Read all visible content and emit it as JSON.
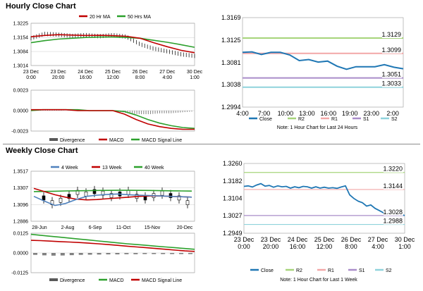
{
  "sections": {
    "hourly_title": "Hourly Close Chart",
    "weekly_title": "Weekly Close Chart"
  },
  "colors": {
    "close": "#1f77b4",
    "ma20": "#c00000",
    "ma50": "#2ca02c",
    "r2": "#a6d47a",
    "r1": "#f2a7a7",
    "s1": "#a98cc9",
    "s2": "#8fd3dc",
    "price_bar": "#000000",
    "divergence": "#808080",
    "week4": "#4f81bd"
  },
  "chart_data": [
    {
      "id": "hourly_price_ma",
      "type": "line",
      "legend": [
        "20 Hr MA",
        "50 Hrs MA"
      ],
      "y_ticks": [
        "1.3225",
        "1.3154",
        "1.3084",
        "1.3014"
      ],
      "ylim": [
        1.3014,
        1.3225
      ],
      "x_ticks": [
        {
          "label1": "23 Dec",
          "label2": "0:00"
        },
        {
          "label1": "23 Dec",
          "label2": "20:00"
        },
        {
          "label1": "24 Dec",
          "label2": "16:00"
        },
        {
          "label1": "25 Dec",
          "label2": "12:00"
        },
        {
          "label1": "26 Dec",
          "label2": "8:00"
        },
        {
          "label1": "27 Dec",
          "label2": "4:00"
        },
        {
          "label1": "30 Dec",
          "label2": "1:00"
        }
      ],
      "series": [
        {
          "name": "20 Hr MA",
          "values": [
            1.3158,
            1.3164,
            1.3168,
            1.3166,
            1.3164,
            1.3165,
            1.3163,
            1.316,
            1.315,
            1.3128,
            1.3108,
            1.309,
            1.3078
          ]
        },
        {
          "name": "50 Hrs MA",
          "values": [
            1.3128,
            1.3138,
            1.3146,
            1.315,
            1.3154,
            1.3156,
            1.3156,
            1.3154,
            1.315,
            1.314,
            1.313,
            1.3118,
            1.3105
          ]
        },
        {
          "name": "Close",
          "values": [
            1.315,
            1.3172,
            1.3168,
            1.3162,
            1.3166,
            1.316,
            1.3166,
            1.3158,
            1.312,
            1.3098,
            1.3085,
            1.307,
            1.3062
          ]
        }
      ]
    },
    {
      "id": "hourly_macd",
      "type": "line",
      "y_ticks": [
        "0.0023",
        "0.0000",
        "-0.0023"
      ],
      "ylim": [
        -0.0023,
        0.0023
      ],
      "legend": [
        "Divergence",
        "MACD",
        "MACD Signal Line"
      ],
      "series": [
        {
          "name": "Divergence",
          "values": [
            0.0001,
            0.0001,
            0.0001,
            0.0,
            0.0001,
            0.0,
            0.0,
            0.0,
            -0.0001,
            -0.0003,
            -0.0004,
            -0.0004,
            -0.0003,
            -0.0003,
            -0.0002,
            -0.0001
          ]
        },
        {
          "name": "MACD",
          "values": [
            0.0001,
            0.0001,
            0.0001,
            0.0001,
            0.0,
            0.0,
            0.0,
            0.0,
            -0.0004,
            -0.001,
            -0.0015,
            -0.0018,
            -0.002,
            -0.0021,
            -0.0021
          ]
        },
        {
          "name": "MACD Signal Line",
          "values": [
            0.0,
            0.0001,
            0.0001,
            0.0001,
            0.0001,
            0.0,
            0.0,
            0.0,
            -0.0001,
            -0.0005,
            -0.001,
            -0.0014,
            -0.0017,
            -0.0019,
            -0.002
          ]
        }
      ]
    },
    {
      "id": "hourly_24h",
      "type": "line",
      "y_ticks": [
        "1.3169",
        "1.3125",
        "1.3081",
        "1.3038",
        "1.2994"
      ],
      "ylim": [
        1.2994,
        1.3169
      ],
      "x_ticks": [
        "4:00",
        "7:00",
        "10:00",
        "13:00",
        "16:00",
        "19:00",
        "23:00",
        "2:00"
      ],
      "levels": [
        {
          "name": "R2",
          "value": 1.3129,
          "label": "1.3129"
        },
        {
          "name": "R1",
          "value": 1.3099,
          "label": "1.3099"
        },
        {
          "name": "S1",
          "value": 1.3051,
          "label": "1.3051"
        },
        {
          "name": "S2",
          "value": 1.3033,
          "label": "1.3033"
        }
      ],
      "close_values": [
        1.3101,
        1.3102,
        1.3097,
        1.3101,
        1.3101,
        1.3096,
        1.3085,
        1.3087,
        1.3082,
        1.3084,
        1.3074,
        1.3068,
        1.3073,
        1.3073,
        1.3073,
        1.3077,
        1.3072,
        1.3069
      ],
      "legend": [
        "Close",
        "R2",
        "R1",
        "S1",
        "S2"
      ],
      "note": "Note: 1 Hour Chart for Last 24 Hours"
    },
    {
      "id": "weekly_price_ma",
      "type": "line",
      "legend": [
        "4 Week",
        "13 Week",
        "40 Week"
      ],
      "y_ticks": [
        "1.3517",
        "1.3307",
        "1.3096",
        "1.2886"
      ],
      "ylim": [
        1.2886,
        1.3517
      ],
      "x_ticks": [
        "28-Jun",
        "2-Aug",
        "6-Sep",
        "11-Oct",
        "15-Nov",
        "20-Dec"
      ],
      "series": [
        {
          "name": "4 Week",
          "values": [
            1.32,
            1.314,
            1.3085,
            1.311,
            1.316,
            1.32,
            1.3215,
            1.3225,
            1.323,
            1.322,
            1.3215,
            1.321,
            1.3205,
            1.32,
            1.3195,
            1.319
          ]
        },
        {
          "name": "13 Week",
          "values": [
            1.33,
            1.326,
            1.322,
            1.319,
            1.3165,
            1.3155,
            1.316,
            1.317,
            1.318,
            1.319,
            1.32,
            1.3205,
            1.3205,
            1.32,
            1.3195,
            1.319
          ]
        },
        {
          "name": "40 Week",
          "values": [
            1.326,
            1.3262,
            1.3265,
            1.3268,
            1.327,
            1.3272,
            1.3274,
            1.3275,
            1.3276,
            1.3276,
            1.3275,
            1.3274,
            1.3272,
            1.327,
            1.3268,
            1.3266
          ]
        },
        {
          "name": "Close",
          "values": [
            1.318,
            1.312,
            1.315,
            1.32,
            1.325,
            1.323,
            1.326,
            1.324,
            1.321,
            1.323,
            1.325,
            1.32,
            1.318,
            1.321,
            1.324,
            1.321,
            1.318,
            1.312
          ]
        }
      ]
    },
    {
      "id": "weekly_macd",
      "type": "line",
      "y_ticks": [
        "0.0125",
        "0.0000",
        "-0.0125"
      ],
      "ylim": [
        -0.0125,
        0.0125
      ],
      "legend": [
        "Divergence",
        "MACD",
        "MACD Signal Line"
      ],
      "series": [
        {
          "name": "Divergence",
          "values": [
            -0.0012,
            -0.0015,
            -0.0017,
            -0.0016,
            -0.0014,
            -0.0012,
            -0.0011,
            -0.001,
            -0.0009,
            -0.0009,
            -0.0008,
            -0.0008,
            -0.0007,
            -0.0007,
            -0.0007,
            -0.0007,
            -0.0007,
            -0.0007
          ]
        },
        {
          "name": "MACD",
          "values": [
            0.0118,
            0.0112,
            0.0106,
            0.01,
            0.0094,
            0.0088,
            0.0082,
            0.0076,
            0.007,
            0.0064,
            0.0058,
            0.0053,
            0.0048,
            0.0043,
            0.0038,
            0.0033,
            0.0028,
            0.0023
          ]
        },
        {
          "name": "MACD Signal Line",
          "values": [
            0.008,
            0.0078,
            0.0075,
            0.0072,
            0.0069,
            0.0066,
            0.0062,
            0.0058,
            0.0053,
            0.0048,
            0.0043,
            0.0038,
            0.0033,
            0.0028,
            0.0023,
            0.0018,
            0.0013,
            0.001
          ]
        }
      ]
    },
    {
      "id": "weekly_1w",
      "type": "line",
      "y_ticks": [
        "1.3260",
        "1.3182",
        "1.3104",
        "1.3027",
        "1.2949"
      ],
      "ylim": [
        1.2949,
        1.326
      ],
      "x_ticks": [
        {
          "label1": "23 Dec",
          "label2": "0:00"
        },
        {
          "label1": "23 Dec",
          "label2": "20:00"
        },
        {
          "label1": "24 Dec",
          "label2": "16:00"
        },
        {
          "label1": "25 Dec",
          "label2": "12:00"
        },
        {
          "label1": "26 Dec",
          "label2": "8:00"
        },
        {
          "label1": "27 Dec",
          "label2": "4:00"
        },
        {
          "label1": "30 Dec",
          "label2": "1:00"
        }
      ],
      "levels": [
        {
          "name": "R2",
          "value": 1.322,
          "label": "1.3220"
        },
        {
          "name": "R1",
          "value": 1.3144,
          "label": "1.3144"
        },
        {
          "name": "S1",
          "value": 1.3028,
          "label": "1.3028"
        },
        {
          "name": "S2",
          "value": 1.2988,
          "label": "1.2988"
        }
      ],
      "close_values": [
        1.3158,
        1.316,
        1.3155,
        1.3164,
        1.317,
        1.3159,
        1.3162,
        1.3154,
        1.316,
        1.3156,
        1.3158,
        1.315,
        1.3156,
        1.3152,
        1.3158,
        1.3156,
        1.315,
        1.3156,
        1.315,
        1.3154,
        1.315,
        1.3152,
        1.3149,
        1.3155,
        1.316,
        1.312,
        1.3104,
        1.3092,
        1.3085,
        1.307,
        1.3075,
        1.306,
        1.305,
        1.304,
        1.3045,
        1.3038,
        1.303,
        1.3034,
        1.3028
      ],
      "legend": [
        "Close",
        "R2",
        "R1",
        "S1",
        "S2"
      ],
      "note": "Note: 1 Hour Chart for Last 1 Week"
    }
  ]
}
